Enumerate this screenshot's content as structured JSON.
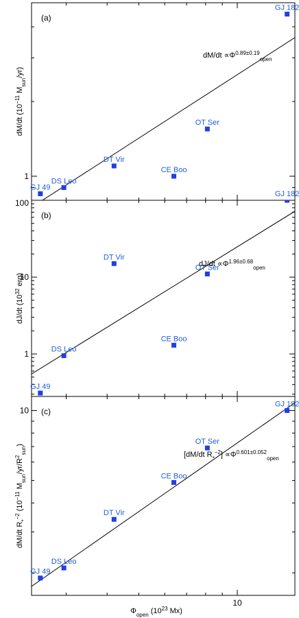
{
  "chart_data": [
    {
      "type": "scatter",
      "panel_label": "(a)",
      "ylabel_parts": [
        "dM/dt (10",
        "−11",
        " M",
        "sun",
        "/yr)"
      ],
      "y_scale": "log",
      "x_scale": "log",
      "xlim": [
        2.35,
        15.0
      ],
      "ylim": [
        0.8,
        5.0
      ],
      "y_ticks": [
        {
          "value": 1,
          "label": "1"
        }
      ],
      "points": [
        {
          "name": "GJ 182",
          "x": 14.2,
          "y": 4.5
        },
        {
          "name": "OT Ser",
          "x": 8.1,
          "y": 1.55
        },
        {
          "name": "DT Vir",
          "x": 4.2,
          "y": 1.1
        },
        {
          "name": "CE Boo",
          "x": 6.4,
          "y": 1.0
        },
        {
          "name": "DS Leo",
          "x": 2.95,
          "y": 0.9
        },
        {
          "name": "GJ 49",
          "x": 2.5,
          "y": 0.85
        }
      ],
      "fit": {
        "x": [
          2.5,
          15.0
        ],
        "y": [
          0.79,
          3.62
        ]
      },
      "annotation_parts": [
        "dM/dt ∝Φ",
        "0.89±0.19",
        "open"
      ]
    },
    {
      "type": "scatter",
      "panel_label": "(b)",
      "ylabel_parts": [
        "dJ/dt (10",
        "32",
        " erg)"
      ],
      "y_scale": "log",
      "x_scale": "log",
      "xlim": [
        2.35,
        15.0
      ],
      "ylim": [
        0.28,
        100
      ],
      "y_ticks": [
        {
          "value": 1,
          "label": "1"
        },
        {
          "value": 10,
          "label": "10"
        },
        {
          "value": 100,
          "label": "100"
        }
      ],
      "points": [
        {
          "name": "GJ 182",
          "x": 14.2,
          "y": 100
        },
        {
          "name": "DT Vir",
          "x": 4.2,
          "y": 15
        },
        {
          "name": "OT Ser",
          "x": 8.1,
          "y": 11
        },
        {
          "name": "CE Boo",
          "x": 6.4,
          "y": 1.3
        },
        {
          "name": "DS Leo",
          "x": 2.95,
          "y": 0.95
        },
        {
          "name": "GJ 49",
          "x": 2.5,
          "y": 0.31
        }
      ],
      "fit": {
        "x": [
          2.35,
          15.0
        ],
        "y": [
          0.55,
          72
        ]
      },
      "annotation_parts": [
        "dJ/dt ∝Φ",
        "1.96±0.68",
        "open"
      ]
    },
    {
      "type": "scatter",
      "panel_label": "(c)",
      "ylabel_parts": [
        "dM/dt R",
        "*",
        "−2",
        " (10",
        "−11",
        " M",
        "sun",
        "/yr/R",
        "2",
        "sun",
        ")"
      ],
      "y_scale": "log",
      "x_scale": "log",
      "xlim": [
        2.35,
        15.0
      ],
      "ylim": [
        1.6,
        11.5
      ],
      "y_ticks": [
        {
          "value": 10,
          "label": "10"
        }
      ],
      "points": [
        {
          "name": "GJ 182",
          "x": 14.2,
          "y": 10
        },
        {
          "name": "OT Ser",
          "x": 8.1,
          "y": 6.9
        },
        {
          "name": "CE Boo",
          "x": 6.4,
          "y": 4.9
        },
        {
          "name": "DT Vir",
          "x": 4.2,
          "y": 3.4
        },
        {
          "name": "DS Leo",
          "x": 2.95,
          "y": 2.1
        },
        {
          "name": "GJ 49",
          "x": 2.5,
          "y": 1.9
        }
      ],
      "fit": {
        "x": [
          2.35,
          15.0
        ],
        "y": [
          1.75,
          10.8
        ]
      },
      "annotation_parts": [
        "[dM/dt R",
        "*",
        "−2",
        "] ∝Φ",
        "0.601±0.052",
        "open"
      ],
      "xlabel_parts": [
        "Φ",
        "open",
        " (10",
        "23",
        " Mx)"
      ],
      "x_ticks": [
        {
          "value": 10,
          "label": "10"
        }
      ]
    }
  ],
  "colors": {
    "points": "#1f3fe6",
    "labels": "#1f5fe0",
    "fit": "#000000"
  }
}
